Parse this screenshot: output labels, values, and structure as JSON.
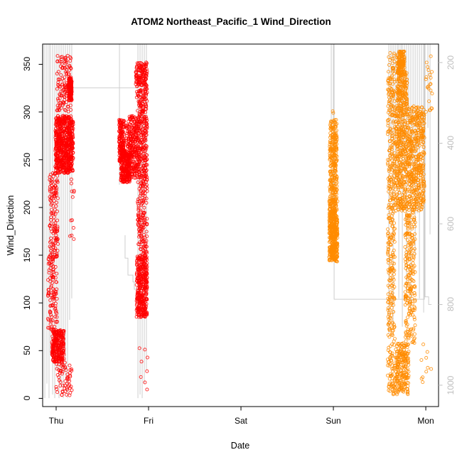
{
  "figure": {
    "background": "#FFFFFF"
  },
  "chart_data": {
    "type": "scatter",
    "title": "ATOM2 Northeast_Pacific_1 Wind_Direction",
    "xlabel": "Date",
    "ylabel": "Wind_Direction",
    "x_tick_labels": [
      "Thu",
      "Fri",
      "Sat",
      "Sun",
      "Mon"
    ],
    "x_tick_days": [
      0,
      1,
      2,
      3,
      4
    ],
    "y_tick_values": [
      0,
      50,
      100,
      150,
      200,
      250,
      300,
      350
    ],
    "y2_tick_values": [
      200,
      400,
      600,
      800,
      1000
    ],
    "x_range": [
      -0.146,
      4.138
    ],
    "y_range": [
      -8.6,
      371.2
    ],
    "y2_range": [
      1053,
      154.2
    ],
    "grid": false,
    "legend": "none",
    "colors": {
      "s1": "#FF0000",
      "s2": "#FF8C00",
      "gray_line": "#C9C9C9",
      "y2_text": "#BEBEBE",
      "axis": "#000000"
    },
    "point_bands": [
      {
        "c": "s1",
        "d": [
          0.008,
          0.162
        ],
        "v": [
          300,
          360
        ],
        "n": 120
      },
      {
        "c": "s1",
        "d": [
          0.135,
          0.17
        ],
        "v": [
          312,
          336
        ],
        "n": 150
      },
      {
        "c": "s1",
        "d": [
          -0.01,
          0.185
        ],
        "v": [
          236,
          296
        ],
        "n": 650
      },
      {
        "c": "s1",
        "d": [
          -0.07,
          0.02
        ],
        "v": [
          150,
          236
        ],
        "n": 120
      },
      {
        "c": "s1",
        "d": [
          0.14,
          0.2
        ],
        "v": [
          160,
          230
        ],
        "n": 12
      },
      {
        "c": "s1",
        "d": [
          -0.09,
          0.01
        ],
        "v": [
          72,
          150
        ],
        "n": 110
      },
      {
        "c": "s1",
        "d": [
          -0.046,
          0.085
        ],
        "v": [
          38,
          72
        ],
        "n": 260
      },
      {
        "c": "s1",
        "d": [
          0.0,
          0.17
        ],
        "v": [
          3,
          38
        ],
        "n": 60
      },
      {
        "c": "s1",
        "d": [
          0.68,
          0.735
        ],
        "v": [
          248,
          292
        ],
        "n": 160
      },
      {
        "c": "s1",
        "d": [
          0.7,
          0.8
        ],
        "v": [
          226,
          260
        ],
        "n": 230
      },
      {
        "c": "s1",
        "d": [
          0.76,
          0.878
        ],
        "v": [
          230,
          296
        ],
        "n": 260
      },
      {
        "c": "s1",
        "d": [
          0.86,
          0.985
        ],
        "v": [
          328,
          352
        ],
        "n": 120
      },
      {
        "c": "s1",
        "d": [
          0.87,
          0.985
        ],
        "v": [
          228,
          328
        ],
        "n": 300
      },
      {
        "c": "s1",
        "d": [
          0.878,
          0.985
        ],
        "v": [
          150,
          228
        ],
        "n": 140
      },
      {
        "c": "s1",
        "d": [
          0.87,
          0.985
        ],
        "v": [
          85,
          150
        ],
        "n": 360
      },
      {
        "c": "s1",
        "d": [
          0.9,
          0.995
        ],
        "v": [
          0,
          55
        ],
        "n": 8
      },
      {
        "c": "s2",
        "d": [
          2.955,
          3.045
        ],
        "v": [
          143,
          210
        ],
        "n": 460
      },
      {
        "c": "s2",
        "d": [
          2.96,
          3.04
        ],
        "v": [
          210,
          292
        ],
        "n": 250
      },
      {
        "c": "s2",
        "d": [
          2.985,
          3.0
        ],
        "v": [
          298,
          306
        ],
        "n": 2
      },
      {
        "c": "s2",
        "d": [
          3.588,
          3.665
        ],
        "v": [
          4,
          362
        ],
        "n": 400
      },
      {
        "c": "s2",
        "d": [
          3.69,
          3.77
        ],
        "v": [
          340,
          364
        ],
        "n": 150
      },
      {
        "c": "s2",
        "d": [
          3.665,
          3.985
        ],
        "v": [
          196,
          306
        ],
        "n": 850
      },
      {
        "c": "s2",
        "d": [
          3.69,
          3.8
        ],
        "v": [
          306,
          342
        ],
        "n": 150
      },
      {
        "c": "s2",
        "d": [
          3.775,
          3.885
        ],
        "v": [
          58,
          196
        ],
        "n": 230
      },
      {
        "c": "s2",
        "d": [
          3.665,
          3.815
        ],
        "v": [
          4,
          58
        ],
        "n": 220
      },
      {
        "c": "s2",
        "d": [
          3.95,
          4.07
        ],
        "v": [
          14,
          58
        ],
        "n": 10
      },
      {
        "c": "s2",
        "d": [
          4.0,
          4.07
        ],
        "v": [
          288,
          360
        ],
        "n": 22
      }
    ],
    "gray_polylines": [
      [
        [
          0.162,
          263
        ],
        [
          0.877,
          263
        ]
      ],
      [
        [
          0.746,
          628
        ],
        [
          0.746,
          685
        ],
        [
          0.777,
          685
        ],
        [
          0.777,
          727
        ],
        [
          0.831,
          727
        ],
        [
          0.831,
          744
        ],
        [
          0.846,
          744
        ],
        [
          0.846,
          762
        ],
        [
          0.923,
          762
        ]
      ],
      [
        [
          3.008,
          154.2
        ],
        [
          3.008,
          787
        ],
        [
          3.985,
          787
        ],
        [
          3.985,
          154.2
        ]
      ],
      [
        [
          3.992,
          154.2
        ],
        [
          3.992,
          781
        ],
        [
          4.031,
          781
        ],
        [
          4.031,
          800
        ],
        [
          4.062,
          800
        ]
      ]
    ],
    "gray_spike_top": 154.2,
    "gray_spikes": [
      [
        -0.123,
        1032
      ],
      [
        -0.1,
        996
      ],
      [
        -0.077,
        1032
      ],
      [
        -0.062,
        926
      ],
      [
        -0.038,
        1023
      ],
      [
        -0.015,
        1032
      ],
      [
        0.008,
        961
      ],
      [
        0.031,
        1032
      ],
      [
        0.054,
        1005
      ],
      [
        0.077,
        1032
      ],
      [
        0.1,
        979
      ],
      [
        0.123,
        1032
      ],
      [
        0.146,
        838
      ],
      [
        0.169,
        785
      ],
      [
        0.685,
        503
      ],
      [
        0.885,
        1032
      ],
      [
        0.908,
        1023
      ],
      [
        0.931,
        1032
      ],
      [
        0.954,
        996
      ],
      [
        0.977,
        961
      ],
      [
        2.977,
        362
      ],
      [
        3.0,
        574
      ],
      [
        3.6,
        873
      ],
      [
        3.623,
        397
      ],
      [
        3.646,
        855
      ],
      [
        3.669,
        485
      ],
      [
        3.692,
        362
      ],
      [
        3.708,
        785
      ],
      [
        3.731,
        415
      ],
      [
        3.746,
        855
      ],
      [
        3.769,
        468
      ],
      [
        3.792,
        767
      ],
      [
        3.815,
        362
      ],
      [
        3.838,
        820
      ],
      [
        3.862,
        503
      ],
      [
        3.885,
        679
      ],
      [
        3.908,
        574
      ],
      [
        3.931,
        785
      ],
      [
        3.954,
        397
      ],
      [
        3.977,
        820
      ],
      [
        4.023,
        362
      ],
      [
        4.046,
        626
      ]
    ]
  }
}
